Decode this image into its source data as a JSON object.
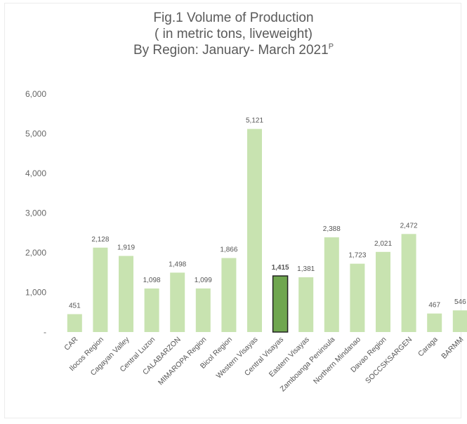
{
  "chart_data": {
    "type": "bar",
    "title_line1": "Fig.1 Volume of Production",
    "title_line2": "( in  metric tons, liveweight)",
    "title_line3": "By Region: January- March 2021",
    "title_sup": "P",
    "categories": [
      "CAR",
      "Ilocos Region",
      "Cagayan Valley",
      "Central Luzon",
      "CALABARZON",
      "MIMAROPA Region",
      "Bicol Region",
      "Western Visayas",
      "Central Visayas",
      "Eastern Visayas",
      "Zamboanga Peninsula",
      "Northern Mindanao",
      "Davao Region",
      "SOCCSKSARGEN",
      "Caraga",
      "BARMM"
    ],
    "values": [
      451,
      2128,
      1919,
      1098,
      1498,
      1099,
      1866,
      5121,
      1415,
      1381,
      2388,
      1723,
      2021,
      2472,
      467,
      546
    ],
    "value_labels": [
      "451",
      "2,128",
      "1,919",
      "1,098",
      "1,498",
      "1,099",
      "1,866",
      "5,121",
      "1,415",
      "1,381",
      "2,388",
      "1,723",
      "2,021",
      "2,472",
      "467",
      "546"
    ],
    "highlight_index": 8,
    "ylim": [
      0,
      6000
    ],
    "yticks": [
      0,
      1000,
      2000,
      3000,
      4000,
      5000,
      6000
    ],
    "ytick_labels": [
      "-",
      "1,000",
      "2,000",
      "3,000",
      "4,000",
      "5,000",
      "6,000"
    ],
    "grid": false,
    "legend": "none",
    "colors": {
      "bar": "#c8e3b0",
      "highlight": "#6fa64f",
      "highlight_border": "#222222"
    }
  }
}
